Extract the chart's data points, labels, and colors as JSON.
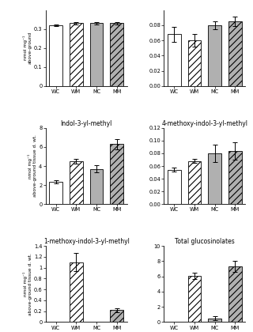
{
  "panels": [
    {
      "title": "",
      "ylabel": "nmol mg⁻¹\nabove-ground",
      "ylim": [
        0.0,
        0.4
      ],
      "yticks": [
        0.0,
        0.1,
        0.2,
        0.3
      ],
      "categories": [
        "WC",
        "WM",
        "MC",
        "MM"
      ],
      "values": [
        0.32,
        0.33,
        0.33,
        0.33
      ],
      "errors": [
        0.005,
        0.005,
        0.005,
        0.005
      ],
      "bar_styles": [
        "white",
        "hatch_white",
        "gray",
        "hatch_gray"
      ],
      "row": 0,
      "col": 0
    },
    {
      "title": "",
      "ylabel": "",
      "ylim": [
        0.0,
        0.1
      ],
      "yticks": [
        0.0,
        0.02,
        0.04,
        0.06,
        0.08
      ],
      "categories": [
        "WC",
        "WM",
        "MC",
        "MM"
      ],
      "values": [
        0.068,
        0.06,
        0.08,
        0.085
      ],
      "errors": [
        0.01,
        0.008,
        0.005,
        0.006
      ],
      "bar_styles": [
        "white",
        "hatch_white",
        "gray",
        "hatch_gray"
      ],
      "row": 0,
      "col": 1
    },
    {
      "title": "Indol-3-yl-methyl",
      "ylabel": "nmol mg⁻¹\nabove-ground tissue d. wt.",
      "ylim": [
        0,
        8
      ],
      "yticks": [
        0,
        2,
        4,
        6,
        8
      ],
      "categories": [
        "WC",
        "WM",
        "MC",
        "MM"
      ],
      "values": [
        2.35,
        4.5,
        3.7,
        6.3
      ],
      "errors": [
        0.15,
        0.22,
        0.35,
        0.55
      ],
      "bar_styles": [
        "white",
        "hatch_white",
        "gray",
        "hatch_gray"
      ],
      "row": 1,
      "col": 0
    },
    {
      "title": "4-methoxy-indol-3-yl-methyl",
      "ylabel": "",
      "ylim": [
        0.0,
        0.12
      ],
      "yticks": [
        0.0,
        0.02,
        0.04,
        0.06,
        0.08,
        0.1,
        0.12
      ],
      "categories": [
        "WC",
        "WM",
        "MC",
        "MM"
      ],
      "values": [
        0.054,
        0.068,
        0.08,
        0.084
      ],
      "errors": [
        0.003,
        0.003,
        0.014,
        0.014
      ],
      "bar_styles": [
        "white",
        "hatch_white",
        "gray",
        "hatch_gray"
      ],
      "row": 1,
      "col": 1
    },
    {
      "title": "1-methoxy-indol-3-yl-methyl",
      "ylabel": "nmol mg⁻¹\nabove-ground tissue d. wt.",
      "ylim": [
        0.0,
        1.4
      ],
      "yticks": [
        0.0,
        0.2,
        0.4,
        0.6,
        0.8,
        1.0,
        1.2,
        1.4
      ],
      "categories": [
        "WC",
        "WM",
        "MC",
        "MM"
      ],
      "values": [
        0.0,
        1.1,
        0.0,
        0.22
      ],
      "errors": [
        0.0,
        0.17,
        0.0,
        0.04
      ],
      "bar_styles": [
        "white",
        "hatch_white",
        "gray",
        "hatch_gray"
      ],
      "row": 2,
      "col": 0
    },
    {
      "title": "Total glucosinolates",
      "ylabel": "",
      "ylim": [
        0,
        10
      ],
      "yticks": [
        0,
        2,
        4,
        6,
        8,
        10
      ],
      "categories": [
        "WC",
        "WM",
        "MC",
        "MM"
      ],
      "values": [
        0.0,
        6.1,
        0.5,
        7.3
      ],
      "errors": [
        0.0,
        0.4,
        0.3,
        0.7
      ],
      "bar_styles": [
        "white",
        "hatch_white",
        "gray",
        "hatch_gray"
      ],
      "row": 2,
      "col": 1
    }
  ],
  "colors": {
    "white": "#ffffff",
    "gray": "#b0b0b0",
    "edge": "#000000"
  },
  "hatch_pattern": "////"
}
